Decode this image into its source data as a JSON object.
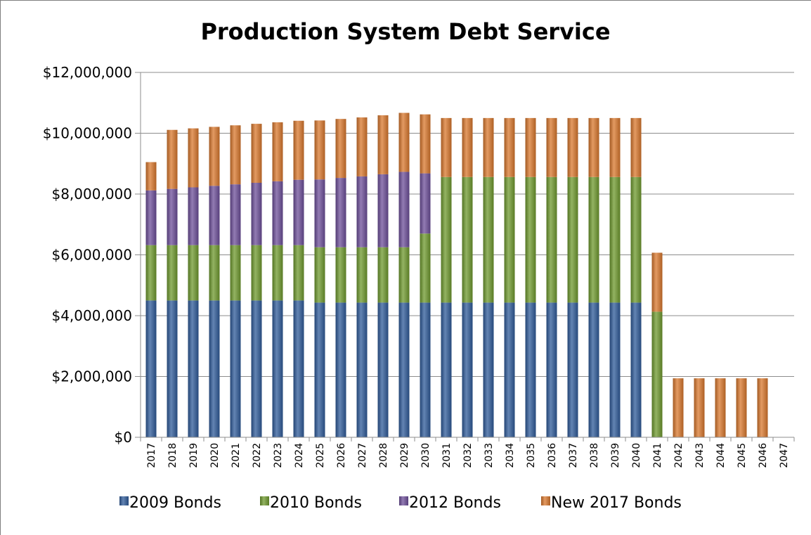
{
  "chart_data": {
    "type": "bar",
    "stacked": true,
    "title": "Production System Debt Service",
    "xlabel": "",
    "ylabel": "",
    "ylim": [
      0,
      12000000
    ],
    "yticks": [
      0,
      2000000,
      4000000,
      6000000,
      8000000,
      10000000,
      12000000
    ],
    "ytick_labels": [
      "$0",
      "$2,000,000",
      "$4,000,000",
      "$6,000,000",
      "$8,000,000",
      "$10,000,000",
      "$12,000,000"
    ],
    "grid": "horizontal",
    "legend_position": "bottom",
    "categories": [
      "2017",
      "2018",
      "2019",
      "2020",
      "2021",
      "2022",
      "2023",
      "2024",
      "2025",
      "2026",
      "2027",
      "2028",
      "2029",
      "2030",
      "2031",
      "2032",
      "2033",
      "2034",
      "2035",
      "2036",
      "2037",
      "2038",
      "2039",
      "2040",
      "2041",
      "2042",
      "2043",
      "2044",
      "2045",
      "2046",
      "2047"
    ],
    "series": [
      {
        "name": "2009 Bonds",
        "color": "#2f5b9a",
        "values": [
          4500000,
          4500000,
          4500000,
          4500000,
          4500000,
          4500000,
          4500000,
          4500000,
          4430000,
          4430000,
          4430000,
          4430000,
          4430000,
          4430000,
          4430000,
          4430000,
          4430000,
          4430000,
          4430000,
          4430000,
          4430000,
          4430000,
          4430000,
          4430000,
          0,
          0,
          0,
          0,
          0,
          0,
          0
        ]
      },
      {
        "name": "2010 Bonds",
        "color": "#6f9a2e",
        "values": [
          1820000,
          1820000,
          1820000,
          1820000,
          1820000,
          1820000,
          1820000,
          1820000,
          1820000,
          1820000,
          1820000,
          1820000,
          1820000,
          2270000,
          4130000,
          4130000,
          4130000,
          4130000,
          4130000,
          4130000,
          4130000,
          4130000,
          4130000,
          4130000,
          4130000,
          0,
          0,
          0,
          0,
          0,
          0
        ]
      },
      {
        "name": "2012 Bonds",
        "color": "#6d4f9a",
        "values": [
          1800000,
          1850000,
          1900000,
          1950000,
          2000000,
          2050000,
          2100000,
          2150000,
          2230000,
          2280000,
          2330000,
          2400000,
          2480000,
          1980000,
          0,
          0,
          0,
          0,
          0,
          0,
          0,
          0,
          0,
          0,
          0,
          0,
          0,
          0,
          0,
          0,
          0
        ]
      },
      {
        "name": "New 2017 Bonds",
        "color": "#d9782d",
        "values": [
          930000,
          1940000,
          1940000,
          1940000,
          1940000,
          1940000,
          1940000,
          1940000,
          1940000,
          1940000,
          1940000,
          1940000,
          1940000,
          1940000,
          1940000,
          1940000,
          1940000,
          1940000,
          1940000,
          1940000,
          1940000,
          1940000,
          1940000,
          1940000,
          1940000,
          1940000,
          1940000,
          1940000,
          1940000,
          1940000,
          0
        ]
      }
    ]
  }
}
